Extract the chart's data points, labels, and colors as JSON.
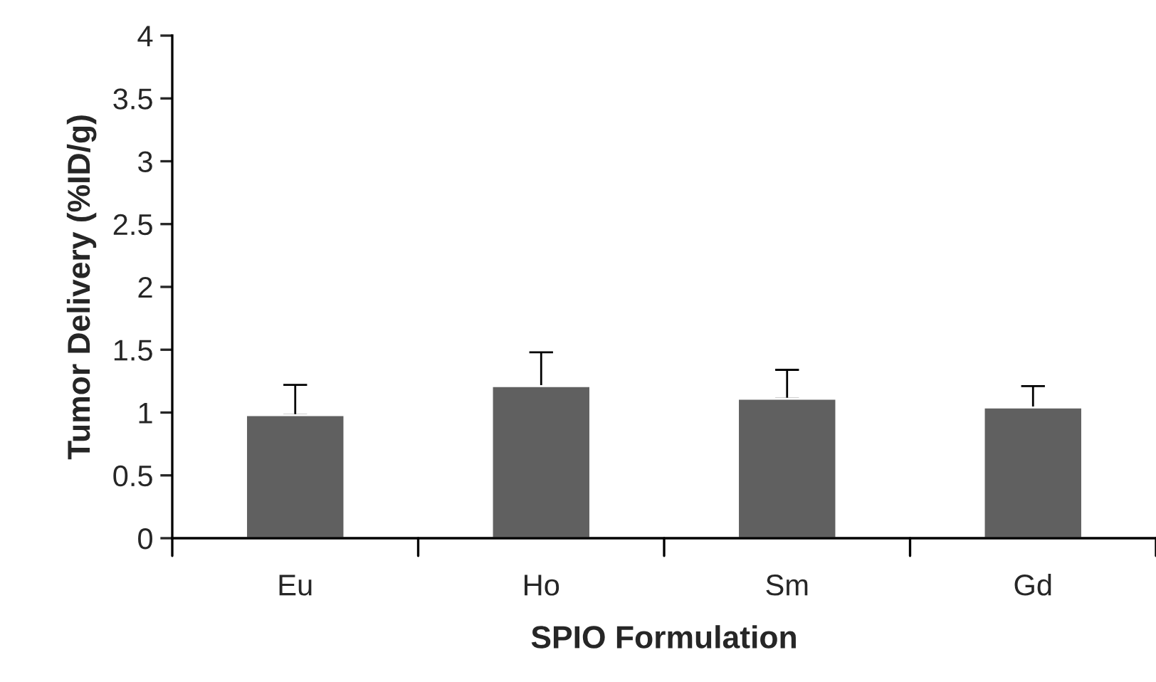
{
  "chart_data": {
    "type": "bar",
    "xlabel": "SPIO Formulation",
    "ylabel": "Tumor Delivery (%ID/g)",
    "categories": [
      "Eu",
      "Ho",
      "Sm",
      "Gd"
    ],
    "values": [
      0.98,
      1.21,
      1.11,
      1.04
    ],
    "errors": [
      [
        0.98,
        1.22
      ],
      [
        1.21,
        1.48
      ],
      [
        1.11,
        1.34
      ],
      [
        1.04,
        1.21
      ]
    ],
    "color": "#606060",
    "ylim": [
      0,
      4
    ],
    "yticks": [
      0,
      0.5,
      1,
      1.5,
      2,
      2.5,
      3,
      3.5,
      4
    ],
    "grid": false,
    "legend": false
  }
}
